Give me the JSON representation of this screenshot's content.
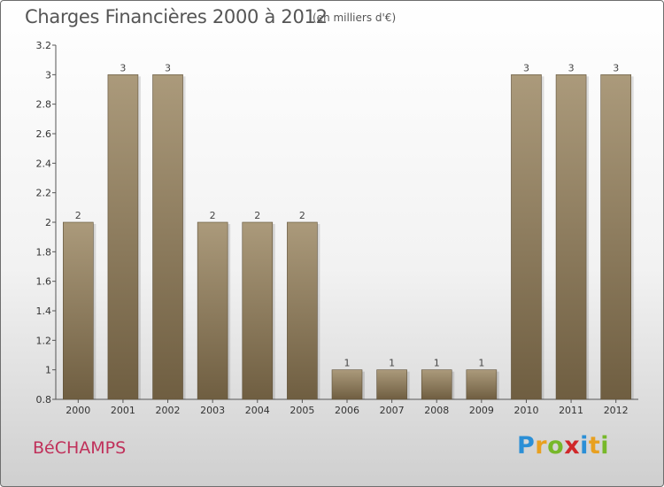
{
  "header": {
    "title": "Charges Financières 2000 à 2012",
    "unit": "(en milliers d'€)"
  },
  "footer": {
    "commune": "BéCHAMPS",
    "logo_letters": [
      "P",
      "r",
      "o",
      "x",
      "i",
      "t",
      "i"
    ],
    "logo_colors": [
      "#2b8fd6",
      "#e8a020",
      "#77b82a",
      "#d0282a",
      "#2b8fd6",
      "#e8a020",
      "#77b82a"
    ]
  },
  "chart_data": {
    "type": "bar",
    "categories": [
      "2000",
      "2001",
      "2002",
      "2003",
      "2004",
      "2005",
      "2006",
      "2007",
      "2008",
      "2009",
      "2010",
      "2011",
      "2012"
    ],
    "values": [
      2,
      3,
      3,
      2,
      2,
      2,
      1,
      1,
      1,
      1,
      3,
      3,
      3
    ],
    "data_labels": [
      "2",
      "3",
      "3",
      "2",
      "2",
      "2",
      "1",
      "1",
      "1",
      "1",
      "3",
      "3",
      "3"
    ],
    "ylim": [
      0.8,
      3.2
    ],
    "yticks": [
      "0.8",
      "1",
      "1.2",
      "1.4",
      "1.6",
      "1.8",
      "2",
      "2.2",
      "2.4",
      "2.6",
      "2.8",
      "3",
      "3.2"
    ],
    "bar_color_top": "#ab9a7b",
    "bar_color_bottom": "#6f5e41",
    "grid": false
  }
}
